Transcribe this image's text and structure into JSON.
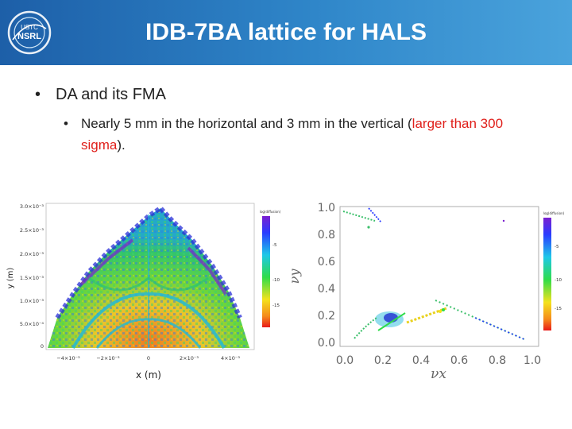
{
  "header": {
    "title": "IDB-7BA lattice for HALS",
    "logo_text": "USTC NSRL",
    "gradient": [
      "#1d5fa8",
      "#2f86c9",
      "#4aa3dc"
    ]
  },
  "bullets": {
    "level1": {
      "marker": "•",
      "text": "DA and its FMA"
    },
    "level2": {
      "marker": "•",
      "text_before": "Nearly 5 mm in the horizontal and 3 mm in the vertical (",
      "text_highlight": "larger than 300 sigma",
      "text_after": ").",
      "highlight_color": "#e0201b"
    }
  },
  "figures": {
    "left": {
      "xlabel": "x (m)",
      "ylabel": "y (m)",
      "xticks": [
        "−4×10⁻³",
        "−2×10⁻³",
        "0",
        "2×10⁻³",
        "4×10⁻³"
      ],
      "yticks": [
        "3.0×10⁻³",
        "2.5×10⁻³",
        "2.0×10⁻³",
        "1.5×10⁻³",
        "1.0×10⁻³",
        "5.0×10⁻⁴",
        "0"
      ],
      "colorbar_title": "log(diffusion)",
      "colorbar_ticks": [
        "-5",
        "-10",
        "-15"
      ]
    },
    "right": {
      "xlabel": "νx",
      "ylabel": "νy",
      "xticks": [
        "0.0",
        "0.2",
        "0.4",
        "0.6",
        "0.8",
        "1.0"
      ],
      "yticks": [
        "1.0",
        "0.8",
        "0.6",
        "0.4",
        "0.2",
        "0.0"
      ],
      "colorbar_title": "log(diffusion)",
      "colorbar_ticks": [
        "-5",
        "-10",
        "-15"
      ]
    }
  }
}
